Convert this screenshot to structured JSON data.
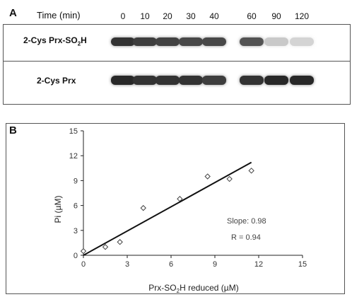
{
  "panel_a": {
    "letter": "A",
    "time_label": "Time (min)",
    "time_points": [
      "0",
      "10",
      "20",
      "30",
      "40",
      "60",
      "90",
      "120"
    ],
    "blot1_label_main": "2-Cys Prx-SO",
    "blot1_label_sub": "2",
    "blot1_label_end": "H",
    "blot2_label": "2-Cys Prx",
    "blot1_band_intensity": [
      0.95,
      0.9,
      0.88,
      0.85,
      0.85,
      0.8,
      0.25,
      0.2
    ],
    "blot2_band_intensity": [
      1.0,
      0.95,
      0.95,
      0.95,
      0.9,
      0.95,
      1.0,
      1.0
    ]
  },
  "panel_b": {
    "letter": "B",
    "xlabel_main": "Prx-SO",
    "xlabel_sub": "2",
    "xlabel_end": "H reduced (µM)",
    "ylabel": "Pi (µM)",
    "slope_text": "Slope: 0.98",
    "r_text": "R = 0.94"
  },
  "chart_data": {
    "type": "scatter",
    "x": [
      0,
      1.5,
      2.5,
      4.1,
      6.6,
      8.5,
      10,
      11.5
    ],
    "y": [
      0.5,
      1.0,
      1.6,
      5.7,
      6.8,
      9.5,
      9.2,
      10.2
    ],
    "fit_line": {
      "x": [
        0,
        11.5
      ],
      "y": [
        0,
        11.2
      ]
    },
    "xlim": [
      0,
      15
    ],
    "ylim": [
      0,
      15
    ],
    "xticks": [
      "0",
      "3",
      "6",
      "9",
      "12",
      "15"
    ],
    "yticks": [
      "0",
      "3",
      "6",
      "9",
      "12",
      "15"
    ],
    "marker": "diamond-open",
    "grid": false
  }
}
